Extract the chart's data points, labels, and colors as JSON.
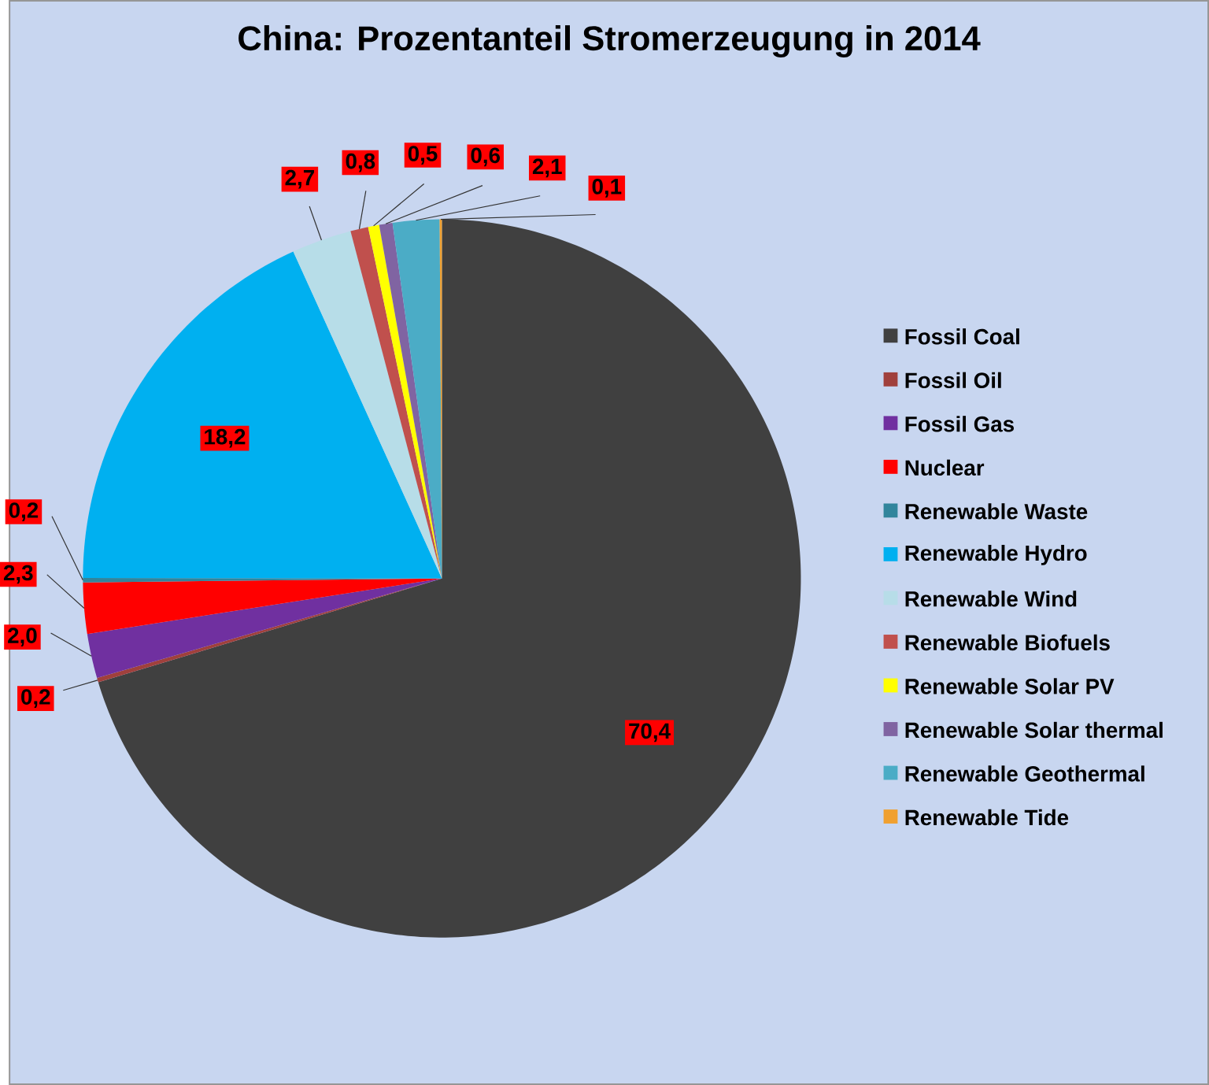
{
  "chart_data": {
    "type": "pie",
    "title": "China: Prozentanteil Stromerzeugung in 2014",
    "categories": [
      "Fossil Coal",
      "Fossil Oil",
      "Fossil Gas",
      "Nuclear",
      "Renewable Waste",
      "Renewable Hydro",
      "Renewable Wind",
      "Renewable Biofuels",
      "Renewable Solar PV",
      "Renewable Solar thermal",
      "Renewable Geothermal",
      "Renewable Tide"
    ],
    "values": [
      70.4,
      0.2,
      2.0,
      2.3,
      0.2,
      18.2,
      2.7,
      0.8,
      0.5,
      0.6,
      2.1,
      0.1
    ],
    "value_labels": [
      "70,4",
      "0,2",
      "2,0",
      "2,3",
      "0,2",
      "18,2",
      "2,7",
      "0,8",
      "0,5",
      "0,6",
      "2,1",
      "0,1"
    ],
    "colors": [
      "#404040",
      "#a0403c",
      "#7030a0",
      "#ff0000",
      "#31859c",
      "#00b0f0",
      "#b7dde8",
      "#c0504d",
      "#ffff00",
      "#8064a2",
      "#4bacc6",
      "#f0a030"
    ],
    "legend": "right"
  }
}
